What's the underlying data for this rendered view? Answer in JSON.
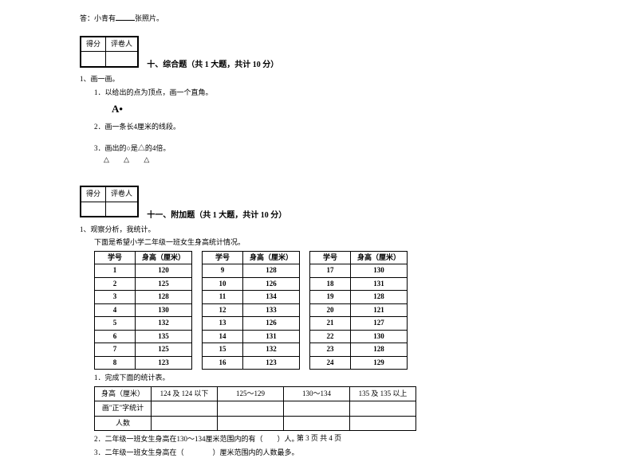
{
  "top_line_prefix": "答：小青有",
  "top_line_suffix": "张照片。",
  "score_box": {
    "c1": "得分",
    "c2": "评卷人"
  },
  "section10_title": "十、综合题（共 1 大题，共计 10 分）",
  "q10_1": "1、画一画。",
  "q10_1_1": "1．以给出的点为顶点，画一个直角。",
  "point_label": "A",
  "q10_1_2": "2．画一条长4厘米的线段。",
  "q10_1_3": "3．画出的○是△的4倍。",
  "triangles": "△ △ △",
  "section11_title": "十一、附加题（共 1 大题，共计 10 分）",
  "q11_1": "1、观察分析，我统计。",
  "q11_1_desc": "下面是希望小学二年级一班女生身高统计情况。",
  "height_headers": {
    "id": "学号",
    "h": "身高（厘米）"
  },
  "height_rows": [
    [
      {
        "id": "1",
        "h": "120"
      },
      {
        "id": "9",
        "h": "128"
      },
      {
        "id": "17",
        "h": "130"
      }
    ],
    [
      {
        "id": "2",
        "h": "125"
      },
      {
        "id": "10",
        "h": "126"
      },
      {
        "id": "18",
        "h": "131"
      }
    ],
    [
      {
        "id": "3",
        "h": "128"
      },
      {
        "id": "11",
        "h": "134"
      },
      {
        "id": "19",
        "h": "128"
      }
    ],
    [
      {
        "id": "4",
        "h": "130"
      },
      {
        "id": "12",
        "h": "133"
      },
      {
        "id": "20",
        "h": "121"
      }
    ],
    [
      {
        "id": "5",
        "h": "132"
      },
      {
        "id": "13",
        "h": "126"
      },
      {
        "id": "21",
        "h": "127"
      }
    ],
    [
      {
        "id": "6",
        "h": "135"
      },
      {
        "id": "14",
        "h": "131"
      },
      {
        "id": "22",
        "h": "130"
      }
    ],
    [
      {
        "id": "7",
        "h": "125"
      },
      {
        "id": "15",
        "h": "132"
      },
      {
        "id": "23",
        "h": "128"
      }
    ],
    [
      {
        "id": "8",
        "h": "123"
      },
      {
        "id": "16",
        "h": "123"
      },
      {
        "id": "24",
        "h": "129"
      }
    ]
  ],
  "q11_sub1": "1．完成下面的统计表。",
  "stat_headers": {
    "row_label": "身高（厘米）",
    "c1": "124 及 124 以下",
    "c2": "125～129",
    "c3": "130～134",
    "c4": "135 及 135 以上"
  },
  "stat_row2": "画\"正\"字统计",
  "stat_row3": "人数",
  "q11_sub2": "2．二年级一班女生身高在130～134厘米范围内的有（　　）人。",
  "q11_sub3": "3．二年级一班女生身高在（　　　　）厘米范围内的人数最多。",
  "footer": "第 3 页 共 4 页"
}
